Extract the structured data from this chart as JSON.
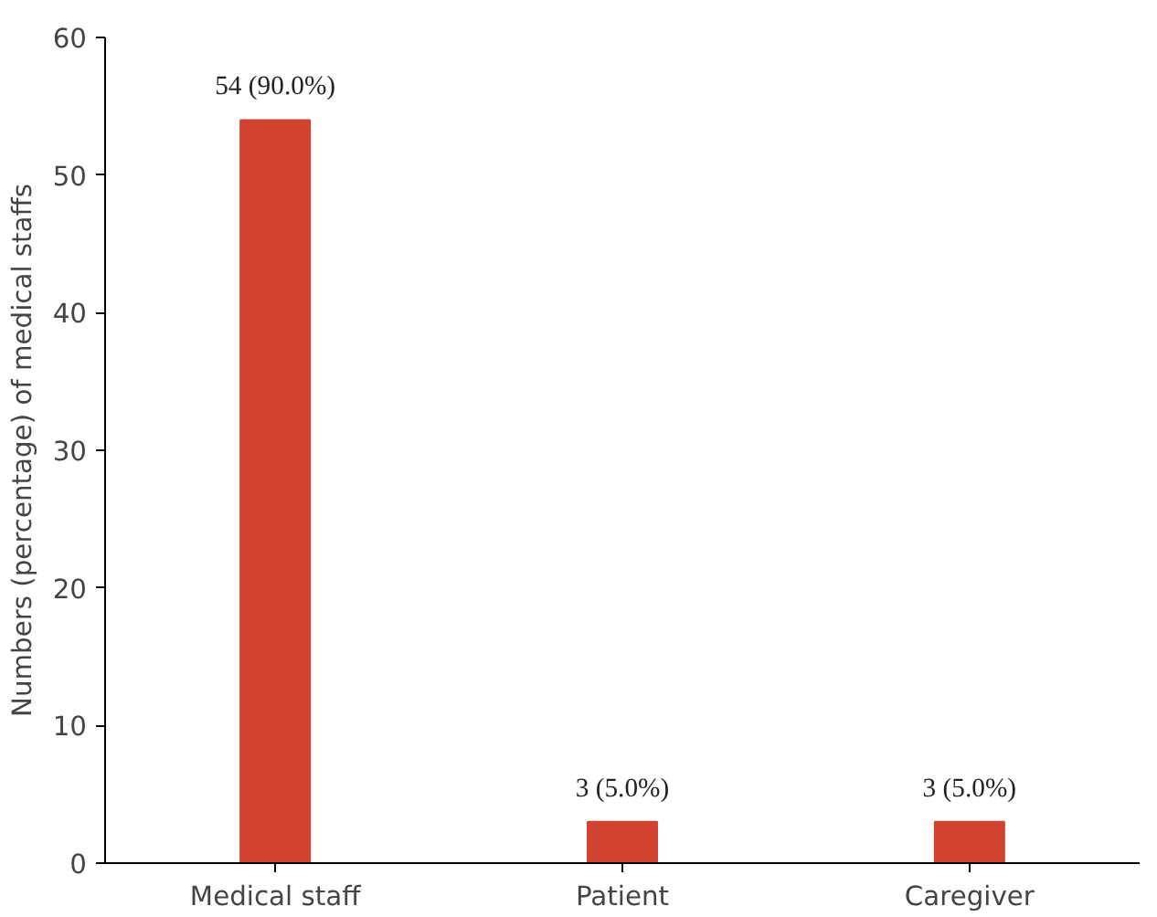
{
  "chart_data": {
    "type": "bar",
    "ylabel": "Numbers (percentage) of medical staffs",
    "categories": [
      "Medical staff",
      "Patient",
      "Caregiver"
    ],
    "values": [
      54,
      3,
      3
    ],
    "value_labels": [
      "54 (90.0%)",
      "3 (5.0%)",
      "3 (5.0%)"
    ],
    "color": "#d2432f",
    "ylim": [
      0,
      60
    ],
    "yticks": [
      0,
      10,
      20,
      30,
      40,
      50,
      60
    ],
    "grid": false
  }
}
